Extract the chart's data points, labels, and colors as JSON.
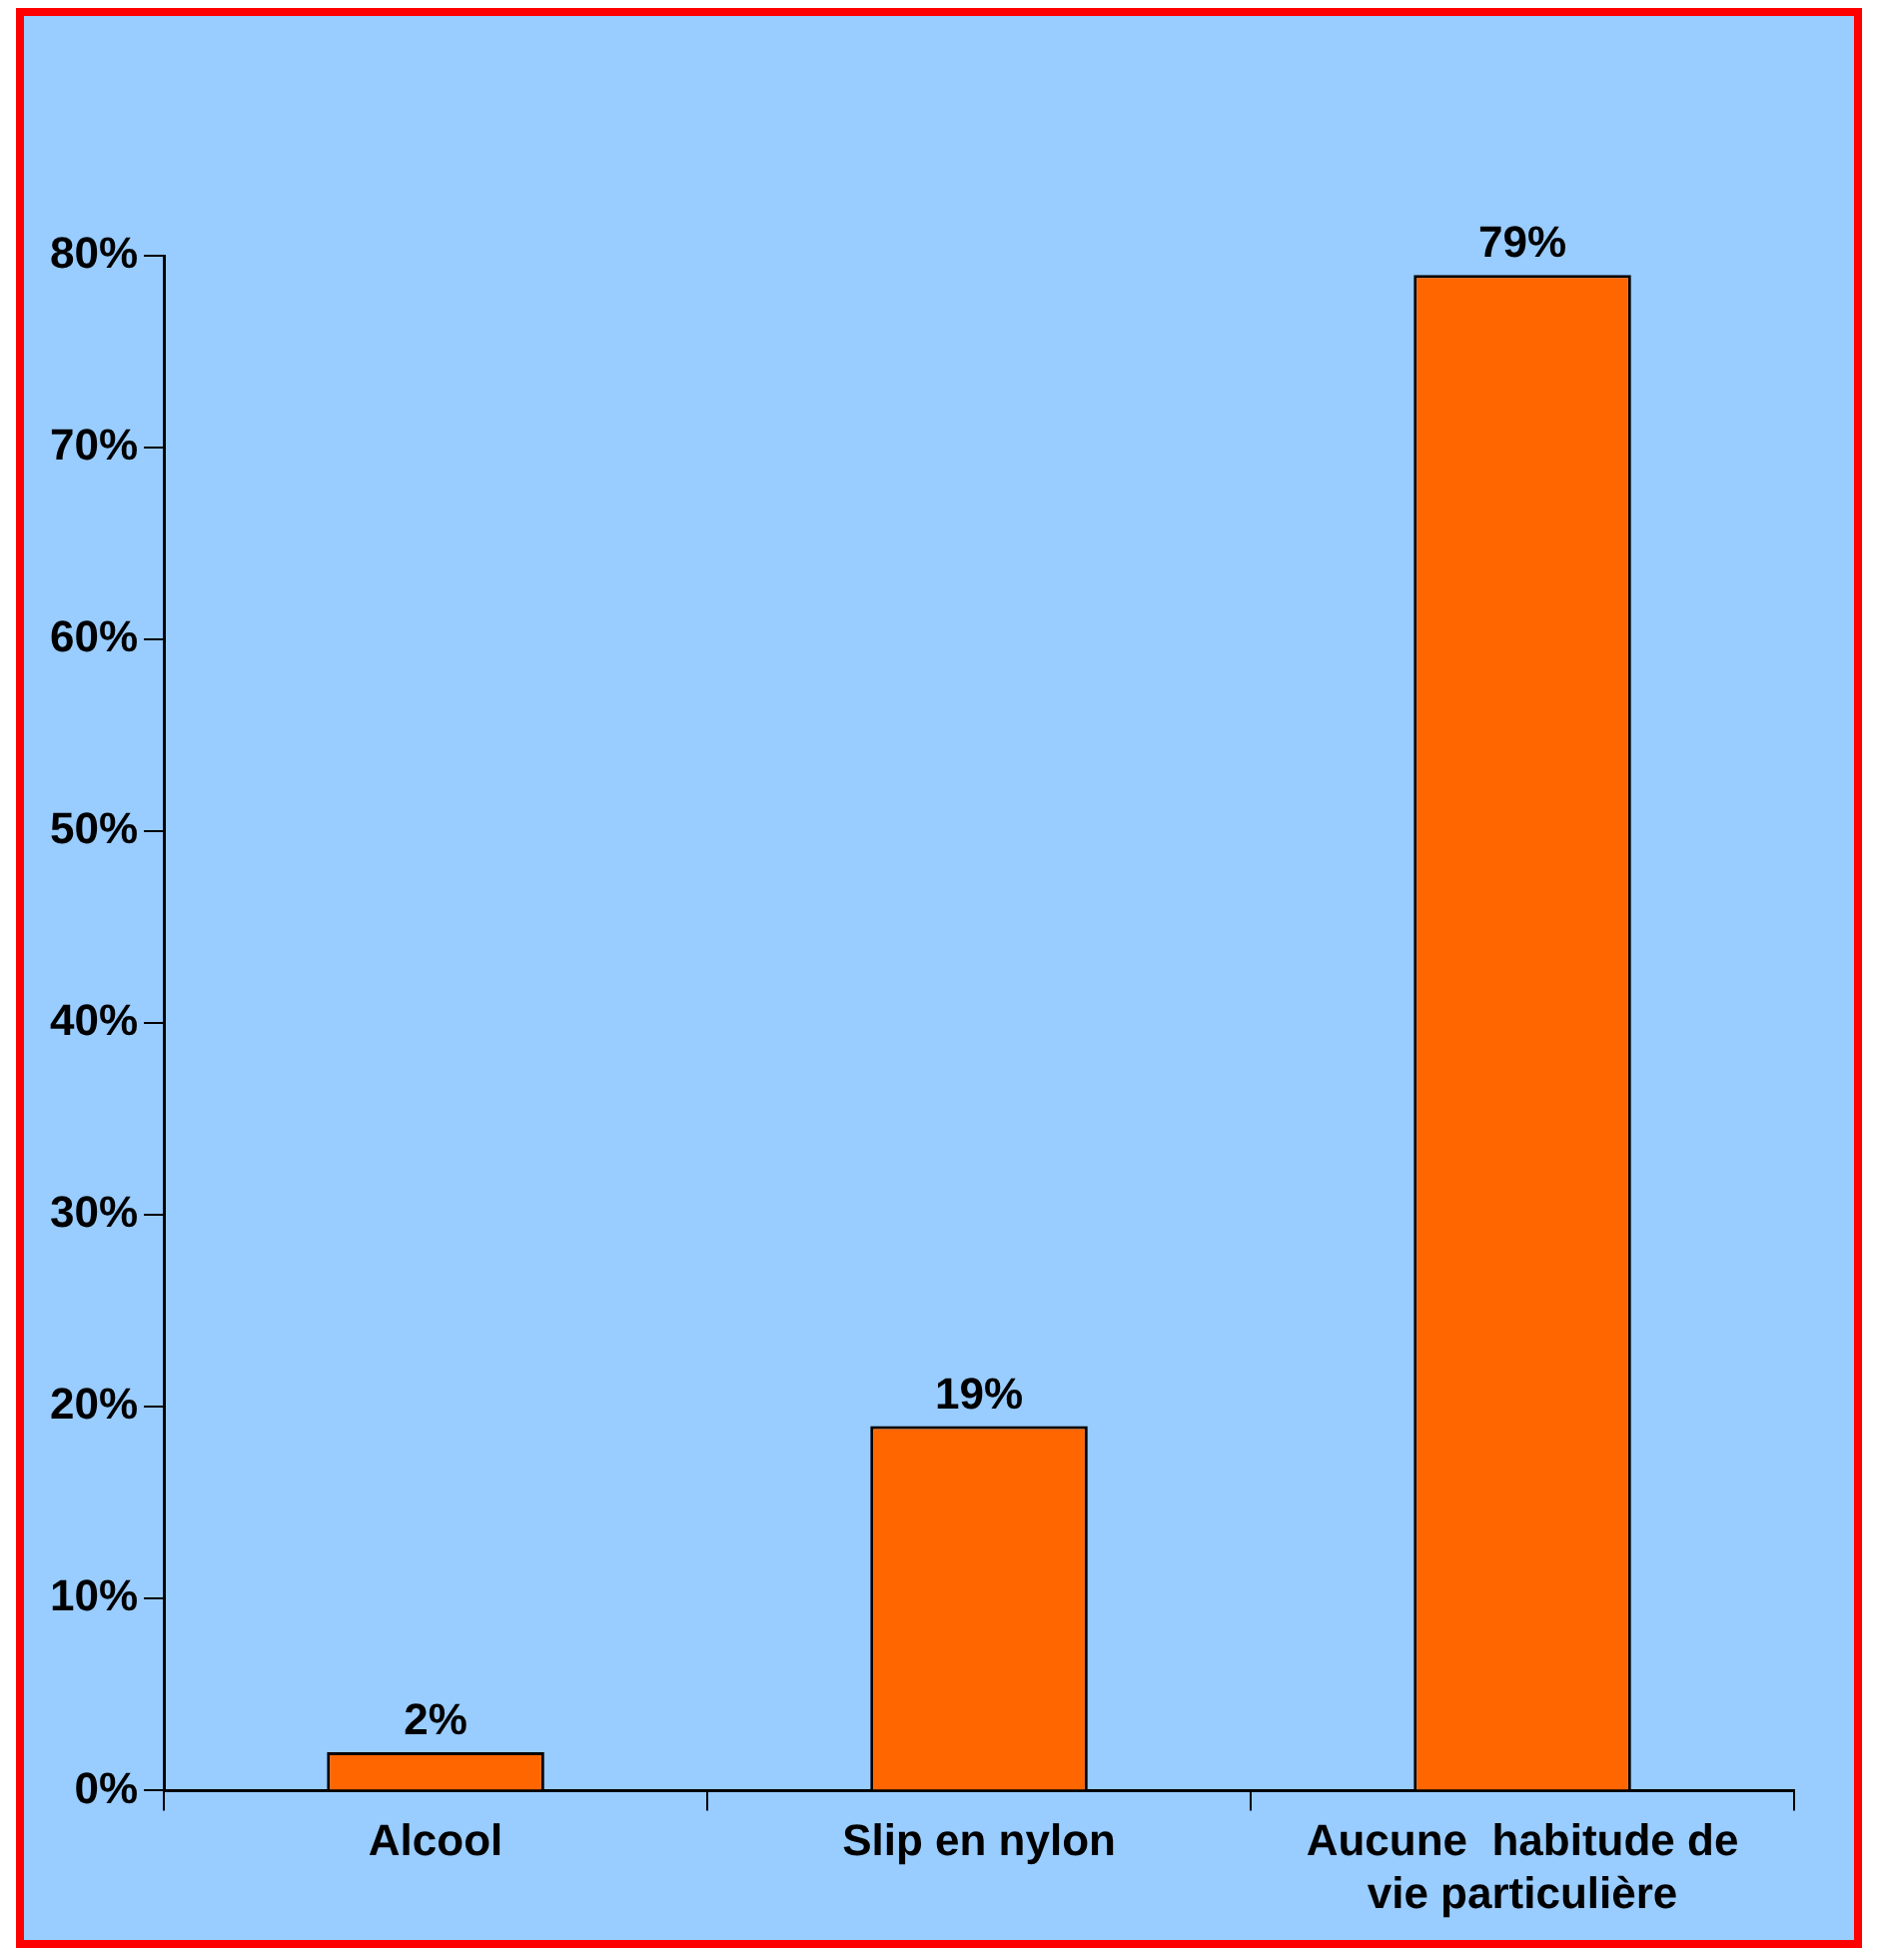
{
  "chart_data": {
    "type": "bar",
    "categories": [
      "Alcool",
      "Slip en nylon",
      "Aucune  habitude de vie particulière"
    ],
    "values": [
      2,
      19,
      79
    ],
    "color": "#ff6600",
    "value_labels": [
      "2%",
      "19%",
      "79%"
    ],
    "ylim": [
      0,
      80
    ],
    "yticks": [
      {
        "value": 0,
        "label": "0%"
      },
      {
        "value": 10,
        "label": "10%"
      },
      {
        "value": 20,
        "label": "20%"
      },
      {
        "value": 30,
        "label": "30%"
      },
      {
        "value": 40,
        "label": "40%"
      },
      {
        "value": 50,
        "label": "50%"
      },
      {
        "value": 60,
        "label": "60%"
      },
      {
        "value": 70,
        "label": "70%"
      },
      {
        "value": 80,
        "label": "80%"
      }
    ],
    "grid": false,
    "legend": false
  }
}
